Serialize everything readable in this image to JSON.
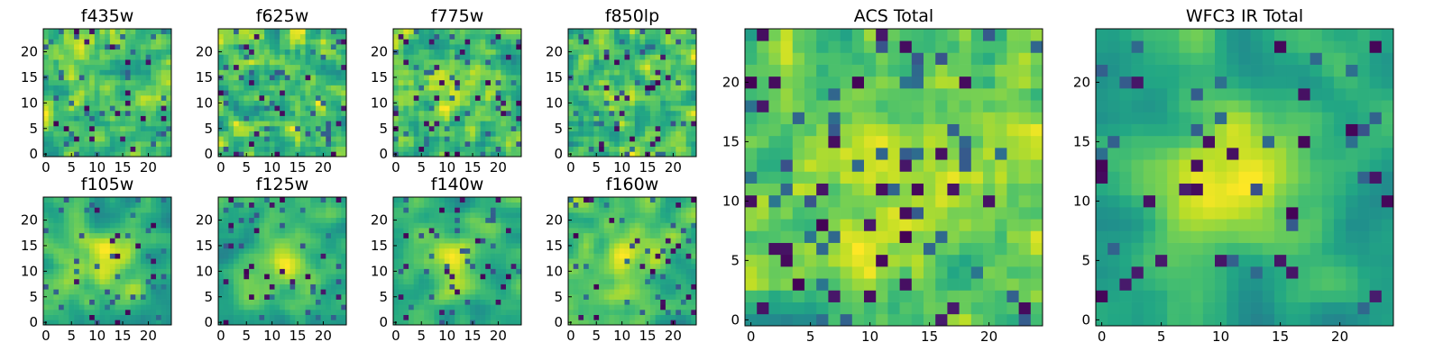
{
  "figure": {
    "colormap": "viridis"
  },
  "chart_data": [
    {
      "type": "heatmap",
      "title": "f435w",
      "xlim": [
        0,
        24
      ],
      "ylim": [
        0,
        24
      ],
      "xticks": [
        0,
        5,
        10,
        15,
        20
      ],
      "yticks": [
        0,
        5,
        10,
        15,
        20
      ],
      "smooth": 1,
      "center": 0.0,
      "seed": 11
    },
    {
      "type": "heatmap",
      "title": "f625w",
      "xlim": [
        0,
        24
      ],
      "ylim": [
        0,
        24
      ],
      "xticks": [
        0,
        5,
        10,
        15,
        20
      ],
      "yticks": [
        0,
        5,
        10,
        15,
        20
      ],
      "smooth": 1,
      "center": 0.0,
      "seed": 23
    },
    {
      "type": "heatmap",
      "title": "f775w",
      "xlim": [
        0,
        24
      ],
      "ylim": [
        0,
        24
      ],
      "xticks": [
        0,
        5,
        10,
        15,
        20
      ],
      "yticks": [
        0,
        5,
        10,
        15,
        20
      ],
      "smooth": 1,
      "center": 0.2,
      "seed": 37
    },
    {
      "type": "heatmap",
      "title": "f850lp",
      "xlim": [
        0,
        24
      ],
      "ylim": [
        0,
        24
      ],
      "xticks": [
        0,
        5,
        10,
        15,
        20
      ],
      "yticks": [
        0,
        5,
        10,
        15,
        20
      ],
      "smooth": 1,
      "center": 0.1,
      "seed": 41
    },
    {
      "type": "heatmap",
      "title": "f105w",
      "xlim": [
        0,
        24
      ],
      "ylim": [
        0,
        24
      ],
      "xticks": [
        0,
        5,
        10,
        15,
        20
      ],
      "yticks": [
        0,
        5,
        10,
        15,
        20
      ],
      "smooth": 2,
      "center": 0.3,
      "seed": 53
    },
    {
      "type": "heatmap",
      "title": "f125w",
      "xlim": [
        0,
        24
      ],
      "ylim": [
        0,
        24
      ],
      "xticks": [
        0,
        5,
        10,
        15,
        20
      ],
      "yticks": [
        0,
        5,
        10,
        15,
        20
      ],
      "smooth": 2,
      "center": 0.3,
      "seed": 67
    },
    {
      "type": "heatmap",
      "title": "f140w",
      "xlim": [
        0,
        24
      ],
      "ylim": [
        0,
        24
      ],
      "xticks": [
        0,
        5,
        10,
        15,
        20
      ],
      "yticks": [
        0,
        5,
        10,
        15,
        20
      ],
      "smooth": 2,
      "center": 0.3,
      "seed": 71
    },
    {
      "type": "heatmap",
      "title": "f160w",
      "xlim": [
        0,
        24
      ],
      "ylim": [
        0,
        24
      ],
      "xticks": [
        0,
        5,
        10,
        15,
        20
      ],
      "yticks": [
        0,
        5,
        10,
        15,
        20
      ],
      "smooth": 2,
      "center": 0.3,
      "seed": 83
    },
    {
      "type": "heatmap",
      "title": "ACS Total",
      "xlim": [
        0,
        24
      ],
      "ylim": [
        0,
        24
      ],
      "xticks": [
        0,
        5,
        10,
        15,
        20
      ],
      "yticks": [
        0,
        5,
        10,
        15,
        20
      ],
      "smooth": 1,
      "center": 0.15,
      "seed": 97
    },
    {
      "type": "heatmap",
      "title": "WFC3 IR Total",
      "xlim": [
        0,
        24
      ],
      "ylim": [
        0,
        24
      ],
      "xticks": [
        0,
        5,
        10,
        15,
        20
      ],
      "yticks": [
        0,
        5,
        10,
        15,
        20
      ],
      "smooth": 2,
      "center": 0.5,
      "seed": 101
    }
  ]
}
